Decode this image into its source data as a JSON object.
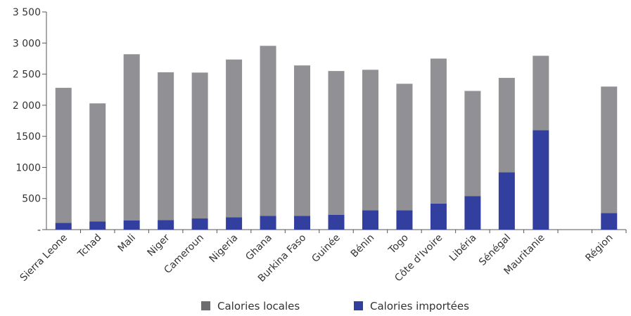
{
  "chart_data": {
    "type": "bar",
    "stacked": true,
    "categories": [
      "Sierra Leone",
      "Tchad",
      "Mali",
      "Niger",
      "Cameroun",
      "Nigeria",
      "Ghana",
      "Burkina Faso",
      "Guinée",
      "Bénin",
      "Togo",
      "Côte d'Ivoire",
      "Libéria",
      "Sénégal",
      "Mauritanie",
      "",
      "Région"
    ],
    "series": [
      {
        "name": "Calories importées",
        "color": "#333f9e",
        "values": [
          110,
          130,
          150,
          155,
          180,
          200,
          220,
          220,
          240,
          310,
          310,
          420,
          540,
          920,
          1600,
          null,
          265
        ]
      },
      {
        "name": "Calories locales",
        "color": "#919195",
        "values": [
          2170,
          1900,
          2670,
          2375,
          2345,
          2535,
          2735,
          2420,
          2310,
          2260,
          2035,
          2330,
          1690,
          1520,
          1195,
          null,
          2035
        ]
      }
    ],
    "yticks": [
      "-",
      "500",
      "1000",
      "1500",
      "2 000",
      "2 500",
      "3 000",
      "3 500"
    ],
    "ylim": [
      0,
      3500
    ],
    "legend_position": "bottom",
    "legend": [
      {
        "label": "Calories locales",
        "color": "#6d6d70"
      },
      {
        "label": "Calories importées",
        "color": "#333f9e"
      }
    ]
  }
}
